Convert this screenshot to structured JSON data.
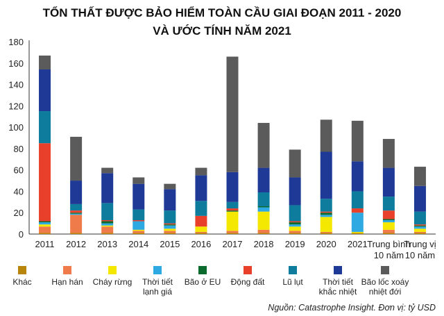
{
  "chart_data": {
    "type": "bar",
    "stacked": true,
    "title": [
      "TỔN THẤT ĐƯỢC BẢO HIỂM TOÀN CẦU GIAI ĐOẠN 2011 - 2020",
      "VÀ ƯỚC TÍNH NĂM 2021"
    ],
    "categories": [
      [
        "2011"
      ],
      [
        "2012"
      ],
      [
        "2013"
      ],
      [
        "2014"
      ],
      [
        "2015"
      ],
      [
        "2016"
      ],
      [
        "2017"
      ],
      [
        "2018"
      ],
      [
        "2019"
      ],
      [
        "2020"
      ],
      [
        "2021"
      ],
      [
        "Trung bình",
        "10 năm"
      ],
      [
        "Trung vị",
        "10 năm"
      ]
    ],
    "ylim": [
      0,
      180
    ],
    "yticks": [
      0,
      20,
      40,
      60,
      80,
      100,
      120,
      140,
      160,
      180
    ],
    "grid": false,
    "legend_position": "bottom",
    "series": [
      {
        "name": "Khác",
        "color": "#b8860b",
        "values": [
          1,
          1,
          1,
          1,
          1,
          1,
          1,
          1,
          1,
          1,
          1,
          1,
          1
        ]
      },
      {
        "name": "Hạn hán",
        "color": "#f07b4a",
        "values": [
          6,
          17,
          6,
          2,
          2,
          1,
          2,
          3,
          2,
          1,
          0,
          3,
          1
        ]
      },
      {
        "name": "Cháy rừng",
        "color": "#f5e800",
        "values": [
          2,
          0,
          1,
          1,
          2,
          5,
          18,
          17,
          4,
          14,
          1,
          7,
          3
        ]
      },
      {
        "name": "Thời tiết lạnh giá",
        "color": "#2fa9e1",
        "values": [
          2,
          1,
          2,
          8,
          3,
          0,
          0,
          4,
          2,
          2,
          18,
          2,
          2
        ]
      },
      {
        "name": "Bão ở EU",
        "color": "#0b6b2e",
        "values": [
          1,
          1,
          2,
          0,
          1,
          0,
          1,
          1,
          2,
          2,
          0,
          1,
          1
        ]
      },
      {
        "name": "Động đất",
        "color": "#e8402a",
        "values": [
          73,
          2,
          1,
          1,
          1,
          10,
          2,
          0,
          1,
          1,
          4,
          8,
          1
        ]
      },
      {
        "name": "Lũ lụt",
        "color": "#0e7c9c",
        "values": [
          30,
          6,
          16,
          10,
          12,
          14,
          6,
          13,
          15,
          12,
          16,
          13,
          12
        ]
      },
      {
        "name": "Thời tiết khắc nhiệt",
        "color": "#1e3a96",
        "values": [
          39,
          22,
          28,
          24,
          20,
          24,
          28,
          23,
          26,
          44,
          28,
          27,
          24
        ]
      },
      {
        "name": "Bão lốc xoáy nhiệt đới",
        "color": "#5b5b5b",
        "values": [
          13,
          41,
          5,
          6,
          5,
          7,
          108,
          42,
          26,
          30,
          38,
          27,
          18
        ]
      }
    ],
    "source": "Nguồn: Catastrophe Insight. Đơn vị: tỷ USD"
  }
}
